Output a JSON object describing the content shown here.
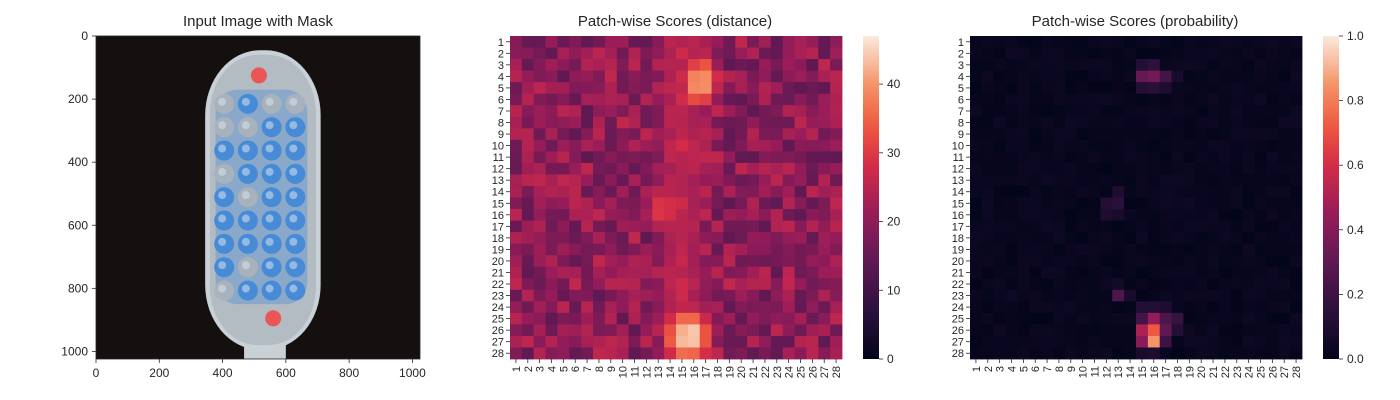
{
  "chart_data": [
    {
      "type": "image",
      "title": "Input Image with Mask",
      "x_ticks": [
        0,
        200,
        400,
        600,
        800,
        1000
      ],
      "y_ticks": [
        0,
        200,
        400,
        600,
        800,
        1000
      ],
      "xlim": [
        0,
        1024
      ],
      "ylim": [
        1024,
        0
      ],
      "image_description": "Toothbrush head on dark background with blue semi-transparent mask over bristles and two red anomaly spots",
      "colors": {
        "background": "#151010",
        "handle": "#c9d1d6",
        "mask": "#3f86d6",
        "anomaly": "#f04a4a",
        "bristle": "#a9b2bb"
      },
      "anomaly_points": [
        {
          "x": 515,
          "y": 125
        },
        {
          "x": 560,
          "y": 895
        }
      ]
    },
    {
      "type": "heatmap",
      "title": "Patch-wise Scores (distance)",
      "x_categories": [
        "1",
        "2",
        "3",
        "4",
        "5",
        "6",
        "7",
        "8",
        "9",
        "10",
        "11",
        "12",
        "13",
        "14",
        "15",
        "16",
        "17",
        "18",
        "19",
        "20",
        "21",
        "22",
        "23",
        "24",
        "25",
        "26",
        "27",
        "28"
      ],
      "y_categories": [
        "1",
        "2",
        "3",
        "4",
        "5",
        "6",
        "7",
        "8",
        "9",
        "10",
        "11",
        "12",
        "13",
        "14",
        "15",
        "16",
        "17",
        "18",
        "19",
        "20",
        "21",
        "22",
        "23",
        "24",
        "25",
        "26",
        "27",
        "28"
      ],
      "colormap": "rocket",
      "vmin": 0,
      "vmax": 47,
      "colorbar_ticks": [
        0,
        10,
        20,
        30,
        40
      ],
      "hotspots": [
        {
          "col": 16.5,
          "row": 4.5,
          "value": 42,
          "sigma_col": 1.6,
          "sigma_row": 2.2
        },
        {
          "col": 13.5,
          "row": 15.5,
          "value": 32,
          "sigma_col": 1.3,
          "sigma_row": 2.6
        },
        {
          "col": 15.5,
          "row": 26.5,
          "value": 46,
          "sigma_col": 2.0,
          "sigma_row": 2.3
        }
      ],
      "column_band": {
        "center_col": 15.0,
        "value": 26,
        "width": 3.5
      },
      "background_range": [
        14,
        26
      ]
    },
    {
      "type": "heatmap",
      "title": "Patch-wise Scores (probability)",
      "x_categories": [
        "1",
        "2",
        "3",
        "4",
        "5",
        "6",
        "7",
        "8",
        "9",
        "10",
        "11",
        "12",
        "13",
        "14",
        "15",
        "16",
        "17",
        "18",
        "19",
        "20",
        "21",
        "22",
        "23",
        "24",
        "25",
        "26",
        "27",
        "28"
      ],
      "y_categories": [
        "1",
        "2",
        "3",
        "4",
        "5",
        "6",
        "7",
        "8",
        "9",
        "10",
        "11",
        "12",
        "13",
        "14",
        "15",
        "16",
        "17",
        "18",
        "19",
        "20",
        "21",
        "22",
        "23",
        "24",
        "25",
        "26",
        "27",
        "28"
      ],
      "colormap": "rocket",
      "vmin": 0.0,
      "vmax": 1.0,
      "colorbar_ticks": [
        0.0,
        0.2,
        0.4,
        0.6,
        0.8,
        1.0
      ],
      "colorbar_tick_labels": [
        "0.0",
        "0.2",
        "0.4",
        "0.6",
        "0.8",
        "1.0"
      ],
      "cells": [
        {
          "col": 15,
          "row": 3,
          "value": 0.12
        },
        {
          "col": 16,
          "row": 3,
          "value": 0.15
        },
        {
          "col": 15,
          "row": 4,
          "value": 0.32
        },
        {
          "col": 16,
          "row": 4,
          "value": 0.35
        },
        {
          "col": 17,
          "row": 4,
          "value": 0.22
        },
        {
          "col": 18,
          "row": 4,
          "value": 0.08
        },
        {
          "col": 15,
          "row": 5,
          "value": 0.12
        },
        {
          "col": 16,
          "row": 5,
          "value": 0.14
        },
        {
          "col": 17,
          "row": 5,
          "value": 0.1
        },
        {
          "col": 13,
          "row": 14,
          "value": 0.1
        },
        {
          "col": 12,
          "row": 15,
          "value": 0.12
        },
        {
          "col": 13,
          "row": 15,
          "value": 0.14
        },
        {
          "col": 12,
          "row": 16,
          "value": 0.1
        },
        {
          "col": 13,
          "row": 16,
          "value": 0.08
        },
        {
          "col": 13,
          "row": 22,
          "value": 0.06
        },
        {
          "col": 13,
          "row": 23,
          "value": 0.25
        },
        {
          "col": 14,
          "row": 23,
          "value": 0.08
        },
        {
          "col": 15,
          "row": 24,
          "value": 0.12
        },
        {
          "col": 16,
          "row": 24,
          "value": 0.12
        },
        {
          "col": 17,
          "row": 24,
          "value": 0.1
        },
        {
          "col": 15,
          "row": 25,
          "value": 0.22
        },
        {
          "col": 16,
          "row": 25,
          "value": 0.45
        },
        {
          "col": 17,
          "row": 25,
          "value": 0.25
        },
        {
          "col": 18,
          "row": 25,
          "value": 0.18
        },
        {
          "col": 15,
          "row": 26,
          "value": 0.5
        },
        {
          "col": 16,
          "row": 26,
          "value": 0.72
        },
        {
          "col": 17,
          "row": 26,
          "value": 0.3
        },
        {
          "col": 18,
          "row": 26,
          "value": 0.12
        },
        {
          "col": 15,
          "row": 27,
          "value": 0.42
        },
        {
          "col": 16,
          "row": 27,
          "value": 0.85
        },
        {
          "col": 17,
          "row": 27,
          "value": 0.2
        },
        {
          "col": 15,
          "row": 28,
          "value": 0.08
        },
        {
          "col": 16,
          "row": 28,
          "value": 0.1
        }
      ],
      "background_range": [
        0.0,
        0.04
      ]
    }
  ]
}
